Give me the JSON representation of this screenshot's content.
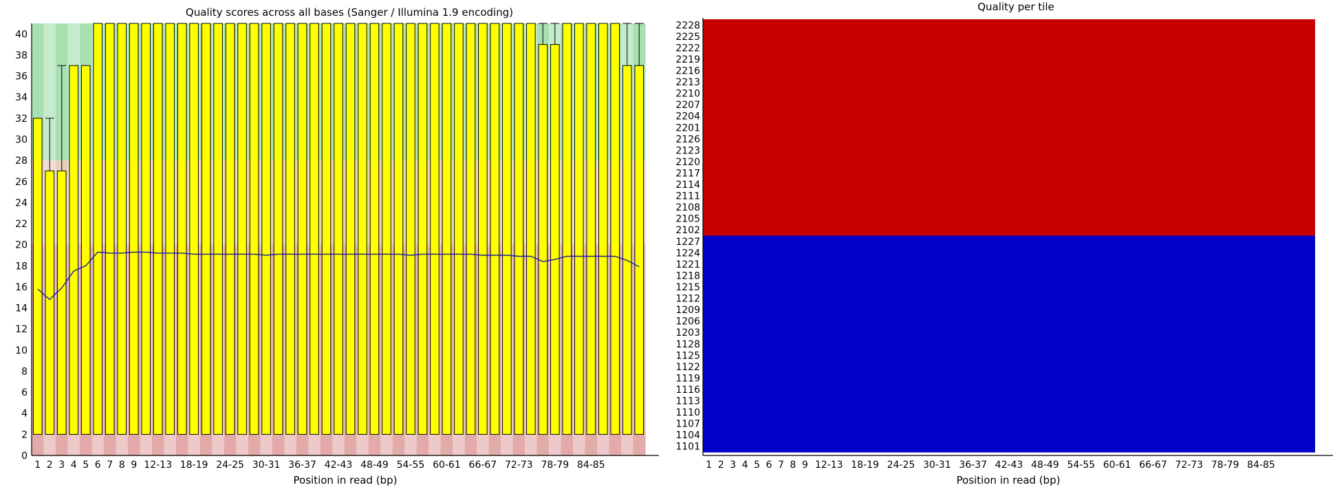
{
  "colors": {
    "zone_green": "#a8e0b2",
    "zone_green_light": "#c5ecca",
    "zone_orange": "#e6cfbb",
    "zone_orange_light": "#f0dfd0",
    "zone_red": "#e3aaaa",
    "zone_red_light": "#edc9c9",
    "box_fill": "#ffff00",
    "box_stroke": "#000000",
    "mean_line": "#1a1a9e",
    "tile_bad": "#c80000",
    "tile_good": "#0000c8"
  },
  "chart_data": [
    {
      "type": "boxplot",
      "title": "Quality scores across all bases (Sanger / Illumina 1.9 encoding)",
      "xlabel": "Position in read (bp)",
      "ylabel": "",
      "ylim": [
        0,
        41
      ],
      "yticks": [
        0,
        2,
        4,
        6,
        8,
        10,
        12,
        14,
        16,
        18,
        20,
        22,
        24,
        26,
        28,
        30,
        32,
        34,
        36,
        38,
        40
      ],
      "grid": false,
      "legend": "none",
      "zones": [
        {
          "name": "poor",
          "from": 0,
          "to": 20
        },
        {
          "name": "reasonable",
          "from": 20,
          "to": 28
        },
        {
          "name": "good",
          "from": 28,
          "to": 41
        }
      ],
      "categories": [
        "1",
        "2",
        "3",
        "4",
        "5",
        "6",
        "7",
        "8",
        "9",
        "10-11",
        "12-13",
        "14-15",
        "16-17",
        "18-19",
        "20-21",
        "22-23",
        "24-25",
        "26-27",
        "28-29",
        "30-31",
        "32-33",
        "34-35",
        "36-37",
        "38-39",
        "40-41",
        "42-43",
        "44-45",
        "46-47",
        "48-49",
        "50-51",
        "52-53",
        "54-55",
        "56-57",
        "58-59",
        "60-61",
        "62-63",
        "64-65",
        "66-67",
        "68-69",
        "70-71",
        "72-73",
        "74-75",
        "76-77",
        "78-79",
        "80-81",
        "82-83",
        "84-85",
        "86-87",
        "88-89",
        "90-91",
        "92-93"
      ],
      "tick_labels": [
        "1",
        "2",
        "3",
        "4",
        "5",
        "6",
        "7",
        "8",
        "9",
        "12-13",
        "18-19",
        "24-25",
        "30-31",
        "36-37",
        "42-43",
        "48-49",
        "54-55",
        "60-61",
        "66-67",
        "72-73",
        "78-79",
        "84-85"
      ],
      "q10": [
        2,
        2,
        2,
        2,
        2,
        2,
        2,
        2,
        2,
        2,
        2,
        2,
        2,
        2,
        2,
        2,
        2,
        2,
        2,
        2,
        2,
        2,
        2,
        2,
        2,
        2,
        2,
        2,
        2,
        2,
        2,
        2,
        2,
        2,
        2,
        2,
        2,
        2,
        2,
        2,
        2,
        2,
        2,
        2,
        2,
        2,
        2,
        2,
        2,
        2,
        2
      ],
      "q25": [
        2,
        2,
        2,
        2,
        2,
        2,
        2,
        2,
        2,
        2,
        2,
        2,
        2,
        2,
        2,
        2,
        2,
        2,
        2,
        2,
        2,
        2,
        2,
        2,
        2,
        2,
        2,
        2,
        2,
        2,
        2,
        2,
        2,
        2,
        2,
        2,
        2,
        2,
        2,
        2,
        2,
        2,
        2,
        2,
        2,
        2,
        2,
        2,
        2,
        2,
        2
      ],
      "q75": [
        32,
        27,
        27,
        37,
        37,
        41,
        41,
        41,
        41,
        41,
        41,
        41,
        41,
        41,
        41,
        41,
        41,
        41,
        41,
        41,
        41,
        41,
        41,
        41,
        41,
        41,
        41,
        41,
        41,
        41,
        41,
        41,
        41,
        41,
        41,
        41,
        41,
        41,
        41,
        41,
        41,
        41,
        39,
        39,
        41,
        41,
        41,
        41,
        41,
        37,
        37
      ],
      "q90": [
        32,
        32,
        37,
        37,
        37,
        41,
        41,
        41,
        41,
        41,
        41,
        41,
        41,
        41,
        41,
        41,
        41,
        41,
        41,
        41,
        41,
        41,
        41,
        41,
        41,
        41,
        41,
        41,
        41,
        41,
        41,
        41,
        41,
        41,
        41,
        41,
        41,
        41,
        41,
        41,
        41,
        41,
        41,
        41,
        41,
        41,
        41,
        41,
        41,
        41,
        41
      ],
      "mean": [
        15.8,
        14.8,
        15.9,
        17.5,
        18.0,
        19.3,
        19.2,
        19.2,
        19.3,
        19.3,
        19.2,
        19.2,
        19.2,
        19.1,
        19.1,
        19.1,
        19.1,
        19.1,
        19.1,
        19.0,
        19.1,
        19.1,
        19.1,
        19.1,
        19.1,
        19.1,
        19.1,
        19.1,
        19.1,
        19.1,
        19.1,
        19.0,
        19.1,
        19.1,
        19.1,
        19.1,
        19.1,
        19.0,
        19.0,
        19.0,
        18.9,
        18.9,
        18.4,
        18.6,
        18.9,
        18.9,
        18.9,
        18.9,
        18.9,
        18.5,
        17.9
      ]
    },
    {
      "type": "heatmap",
      "title": "Quality per tile",
      "xlabel": "Position in read (bp)",
      "ylabel": "",
      "grid": false,
      "legend": "none",
      "x_tick_labels": [
        "1",
        "2",
        "3",
        "4",
        "5",
        "6",
        "7",
        "8",
        "9",
        "12-13",
        "18-19",
        "24-25",
        "30-31",
        "36-37",
        "42-43",
        "48-49",
        "54-55",
        "60-61",
        "66-67",
        "72-73",
        "78-79",
        "84-85"
      ],
      "tiles": [
        "2228",
        "2225",
        "2222",
        "2219",
        "2216",
        "2213",
        "2210",
        "2207",
        "2204",
        "2201",
        "2126",
        "2123",
        "2120",
        "2117",
        "2114",
        "2111",
        "2108",
        "2105",
        "2102",
        "1227",
        "1224",
        "1221",
        "1218",
        "1215",
        "1212",
        "1209",
        "1206",
        "1203",
        "1128",
        "1125",
        "1122",
        "1119",
        "1116",
        "1113",
        "1110",
        "1107",
        "1104",
        "1101"
      ],
      "bad_tile_prefix": "2"
    }
  ]
}
